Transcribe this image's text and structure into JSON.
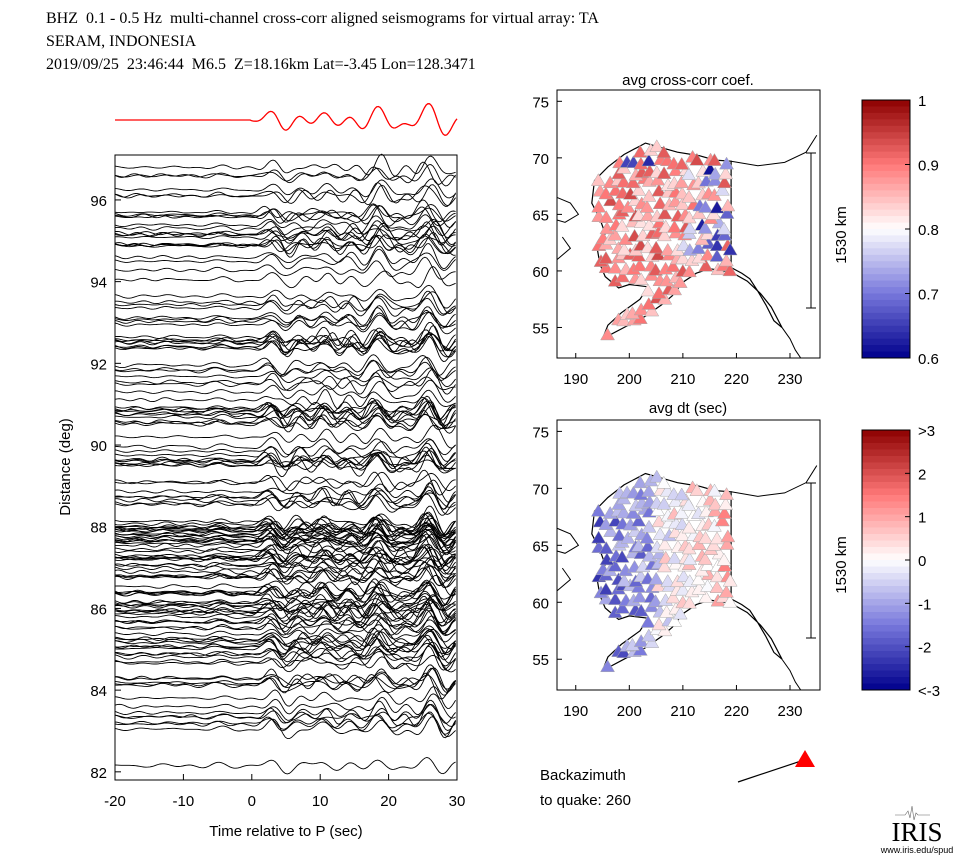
{
  "header": {
    "line1": "BHZ  0.1 - 0.5 Hz  multi-channel cross-corr aligned seismograms for virtual array: TA",
    "line2": "SERAM, INDONESIA",
    "line3": "2019/09/25  23:46:44  M6.5  Z=18.16km Lat=-3.45 Lon=128.3471"
  },
  "chart_data": [
    {
      "type": "line",
      "xlabel": "Time relative to P (sec)",
      "ylabel": "Distance (deg)",
      "xlim": [
        -20,
        30
      ],
      "ylim": [
        81.8,
        97.1
      ],
      "xticks": [
        "-20",
        "-10",
        "0",
        "10",
        "20",
        "30"
      ],
      "yticks": [
        "82",
        "84",
        "86",
        "88",
        "90",
        "92",
        "94",
        "96"
      ],
      "trace_color": "#000000",
      "stack_trace_color": "#ff0000"
    },
    {
      "type": "scatter",
      "title": "avg cross-corr coef.",
      "xlim": [
        186.5,
        235.6
      ],
      "ylim": [
        52.3,
        76
      ],
      "xticks": [
        "190",
        "200",
        "210",
        "220",
        "230"
      ],
      "yticks": [
        "55",
        "60",
        "65",
        "70",
        "75"
      ],
      "scale_label": "1530 km",
      "colorbar": {
        "ticks": [
          "1",
          "0.9",
          "0.8",
          "0.7",
          "0.6"
        ],
        "range": [
          0.6,
          1
        ],
        "colormap": "blue-white-red"
      }
    },
    {
      "type": "scatter",
      "title": "avg dt (sec)",
      "xlim": [
        186.5,
        235.6
      ],
      "ylim": [
        52.3,
        76
      ],
      "xticks": [
        "190",
        "200",
        "210",
        "220",
        "230"
      ],
      "yticks": [
        "55",
        "60",
        "65",
        "70",
        "75"
      ],
      "scale_label": "1530 km",
      "colorbar": {
        "ticks": [
          ">3",
          "2",
          "1",
          "0",
          "-1",
          "-2",
          "<-3"
        ],
        "range": [
          -3,
          3
        ],
        "colormap": "blue-white-red"
      }
    }
  ],
  "backazimuth": {
    "line1": "Backazimuth",
    "line2": "to quake:  260",
    "value": 260,
    "marker_color": "#ff0000"
  },
  "logo": {
    "text": "IRIS",
    "url_text": "www.iris.edu/spud"
  }
}
